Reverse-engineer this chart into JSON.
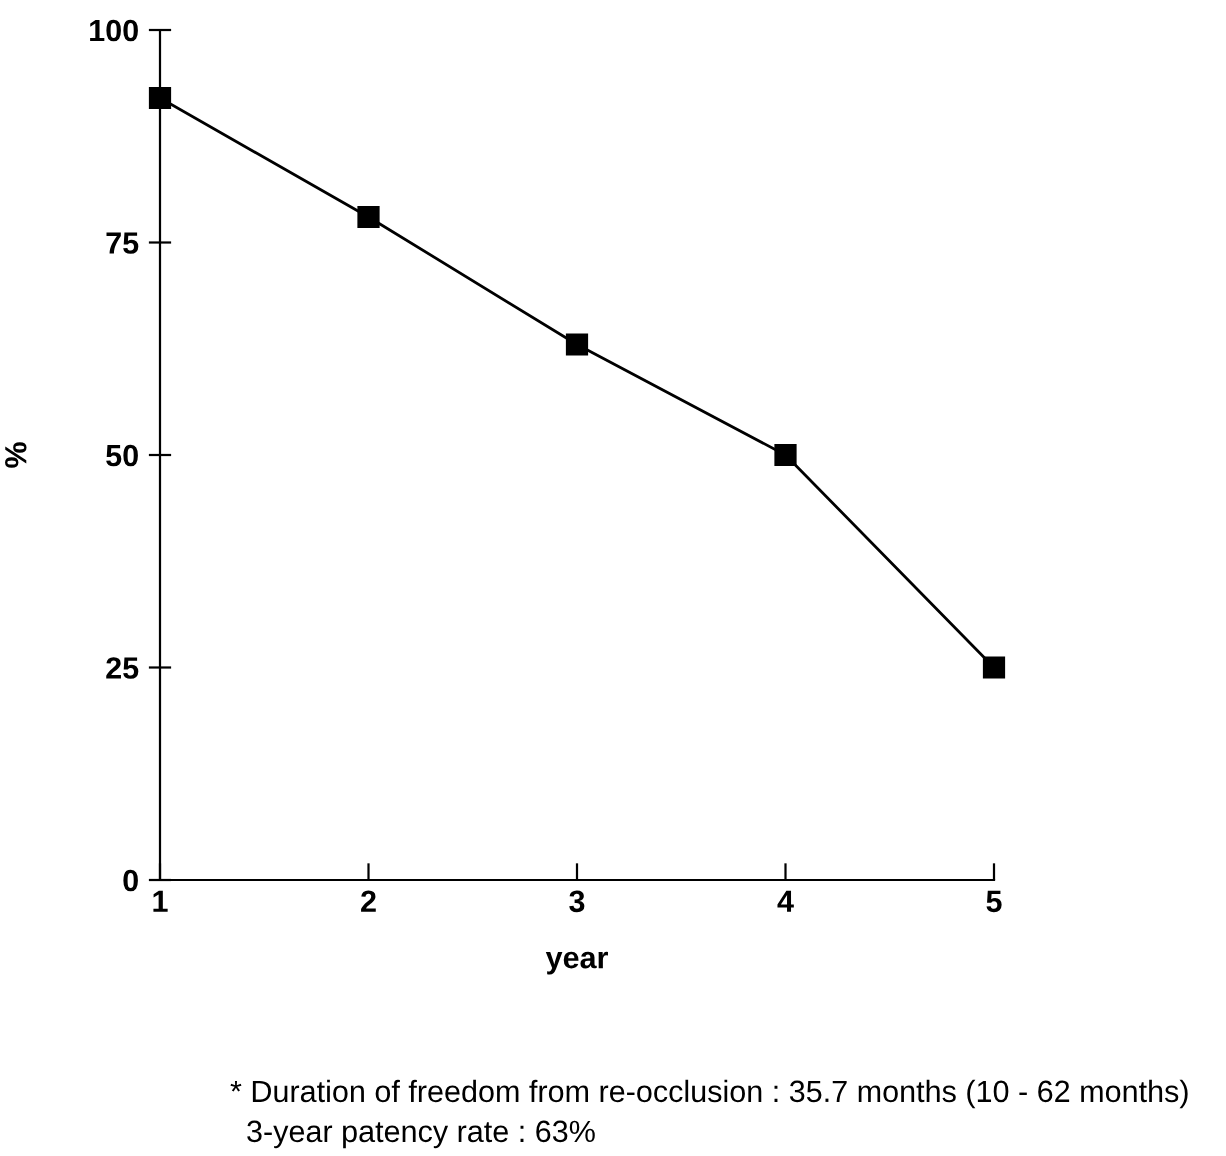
{
  "chart_data": {
    "type": "line",
    "xlabel": "year",
    "ylabel": "%",
    "x": [
      1,
      2,
      3,
      4,
      5
    ],
    "series": [
      {
        "color": "#000000",
        "values": [
          92,
          78,
          63,
          50,
          25
        ]
      }
    ],
    "xlim": [
      1,
      5
    ],
    "xticks": [
      1,
      2,
      3,
      4,
      5
    ],
    "ylim": [
      0,
      100
    ],
    "yticks": [
      0,
      25,
      50,
      75,
      100
    ],
    "marker": "square",
    "line_style": "solid",
    "grid": false,
    "legend": false,
    "annotations": [
      "* Duration of freedom from re-occlusion : 35.7 months (10 - 62 months)",
      "3-year patency rate : 63%"
    ]
  }
}
